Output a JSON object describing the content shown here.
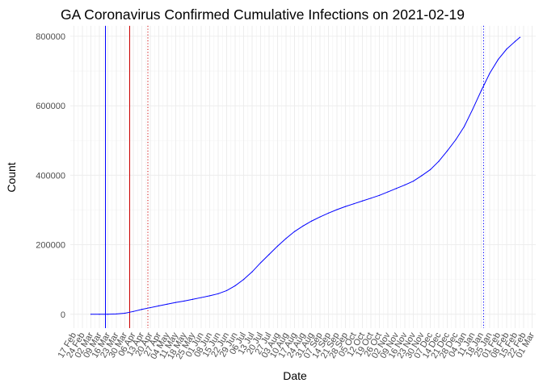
{
  "chart_data": {
    "type": "line",
    "title": "GA Coronavirus Confirmed Cumulative Infections on 2021-02-19",
    "xlabel": "Date",
    "ylabel": "Count",
    "ylim": [
      -40000,
      830000
    ],
    "xlim": [
      "2020-02-14",
      "2021-03-04"
    ],
    "x_tick_format": "%d %b",
    "x_tick_interval_days": 7,
    "x_tick_start": "2020-02-17",
    "x_tick_rotation": -60,
    "y_ticks": [
      0,
      200000,
      400000,
      600000,
      800000
    ],
    "y_tick_labels": [
      "0",
      "200000",
      "400000",
      "600000",
      "800000"
    ],
    "x_tick_labels": [
      "17 Feb",
      "24 Feb",
      "02 Mar",
      "09 Mar",
      "16 Mar",
      "23 Mar",
      "30 Mar",
      "06 Apr",
      "13 Apr",
      "20 Apr",
      "27 Apr",
      "04 May",
      "11 May",
      "18 May",
      "25 May",
      "01 Jun",
      "08 Jun",
      "15 Jun",
      "22 Jun",
      "29 Jun",
      "06 Jul",
      "13 Jul",
      "20 Jul",
      "27 Jul",
      "03 Aug",
      "10 Aug",
      "17 Aug",
      "24 Aug",
      "31 Aug",
      "07 Sep",
      "14 Sep",
      "21 Sep",
      "28 Sep",
      "05 Oct",
      "12 Oct",
      "19 Oct",
      "26 Oct",
      "02 Nov",
      "09 Nov",
      "16 Nov",
      "23 Nov",
      "30 Nov",
      "07 Dec",
      "14 Dec",
      "21 Dec",
      "28 Dec",
      "04 Jan",
      "11 Jan",
      "18 Jan",
      "25 Jan",
      "01 Feb",
      "08 Feb",
      "15 Feb",
      "22 Feb",
      "01 Mar"
    ],
    "grid": true,
    "legend": "none",
    "series": [
      {
        "color": "#0000ff",
        "points": [
          [
            "2020-03-02",
            0
          ],
          [
            "2020-03-09",
            20
          ],
          [
            "2020-03-16",
            120
          ],
          [
            "2020-03-23",
            800
          ],
          [
            "2020-03-30",
            3000
          ],
          [
            "2020-04-06",
            8000
          ],
          [
            "2020-04-13",
            14000
          ],
          [
            "2020-04-20",
            19000
          ],
          [
            "2020-04-27",
            24000
          ],
          [
            "2020-05-04",
            29000
          ],
          [
            "2020-05-11",
            34000
          ],
          [
            "2020-05-18",
            38000
          ],
          [
            "2020-05-25",
            43000
          ],
          [
            "2020-06-01",
            48000
          ],
          [
            "2020-06-08",
            53000
          ],
          [
            "2020-06-15",
            59000
          ],
          [
            "2020-06-22",
            68000
          ],
          [
            "2020-06-29",
            82000
          ],
          [
            "2020-07-06",
            100000
          ],
          [
            "2020-07-13",
            122000
          ],
          [
            "2020-07-20",
            148000
          ],
          [
            "2020-07-27",
            172000
          ],
          [
            "2020-08-03",
            196000
          ],
          [
            "2020-08-10",
            218000
          ],
          [
            "2020-08-17",
            238000
          ],
          [
            "2020-08-24",
            254000
          ],
          [
            "2020-08-31",
            268000
          ],
          [
            "2020-09-07",
            280000
          ],
          [
            "2020-09-14",
            291000
          ],
          [
            "2020-09-21",
            301000
          ],
          [
            "2020-09-28",
            310000
          ],
          [
            "2020-10-05",
            318000
          ],
          [
            "2020-10-12",
            326000
          ],
          [
            "2020-10-19",
            334000
          ],
          [
            "2020-10-26",
            342000
          ],
          [
            "2020-11-02",
            352000
          ],
          [
            "2020-11-09",
            362000
          ],
          [
            "2020-11-16",
            372000
          ],
          [
            "2020-11-23",
            383000
          ],
          [
            "2020-11-30",
            399000
          ],
          [
            "2020-12-07",
            416000
          ],
          [
            "2020-12-14",
            440000
          ],
          [
            "2020-12-21",
            470000
          ],
          [
            "2020-12-28",
            502000
          ],
          [
            "2021-01-04",
            540000
          ],
          [
            "2021-01-11",
            590000
          ],
          [
            "2021-01-18",
            643000
          ],
          [
            "2021-01-25",
            693000
          ],
          [
            "2021-02-01",
            733000
          ],
          [
            "2021-02-08",
            763000
          ],
          [
            "2021-02-15",
            785000
          ],
          [
            "2021-02-19",
            797000
          ]
        ]
      }
    ],
    "vlines": [
      {
        "x": "2020-03-14",
        "color": "#0000ff",
        "style": "solid",
        "y_from": -40000
      },
      {
        "x": "2020-04-03",
        "color": "#cc0000",
        "style": "solid"
      },
      {
        "x": "2020-04-18",
        "color": "#cc0000",
        "style": "dotted"
      },
      {
        "x": "2021-01-20",
        "color": "#0000ff",
        "style": "dotted"
      }
    ]
  }
}
